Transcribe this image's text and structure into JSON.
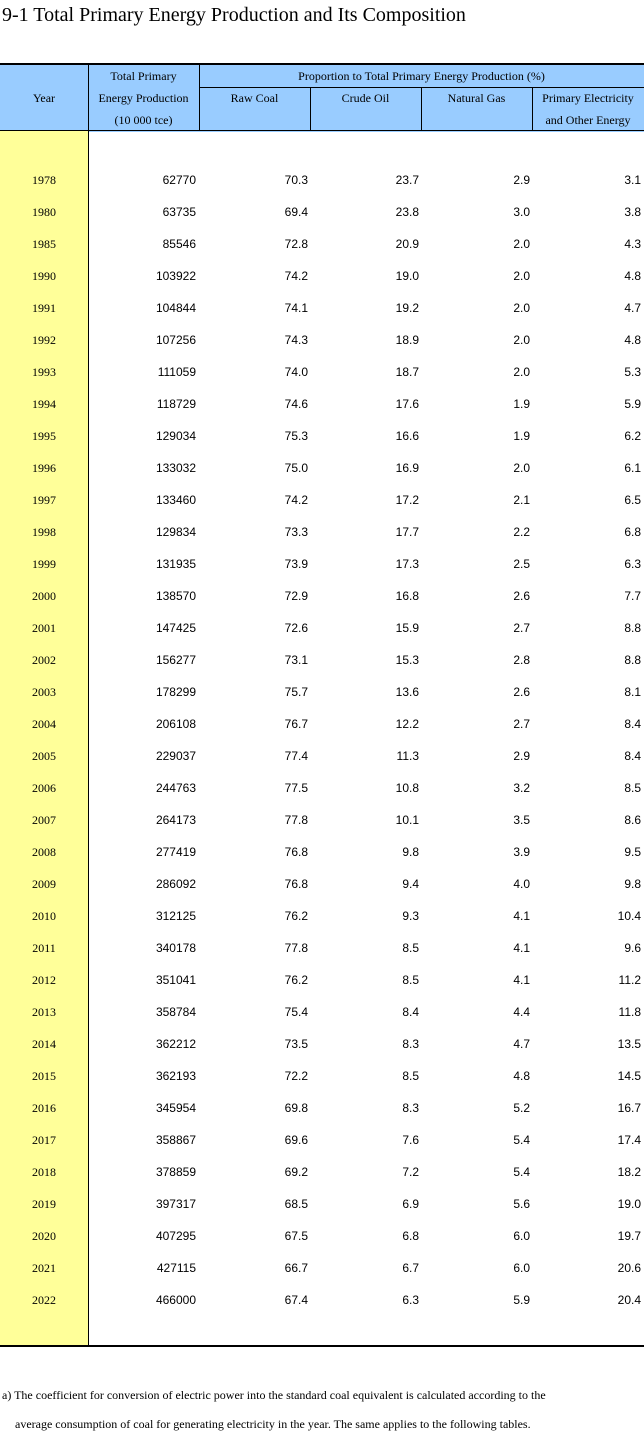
{
  "title": "9-1  Total Primary Energy Production and Its Composition",
  "headers": {
    "year": "Year",
    "total_l1": "Total Primary",
    "total_l2": "Energy Production",
    "total_l3": "(10 000 tce)",
    "proportion": "Proportion to Total Primary Energy Production (%)",
    "coal": "Raw Coal",
    "oil": "Crude Oil",
    "gas": "Natural Gas",
    "elec_l1": "Primary Electricity",
    "elec_l2": "and Other Energy"
  },
  "rows": [
    {
      "year": "1978",
      "total": "62770",
      "coal": "70.3",
      "oil": "23.7",
      "gas": "2.9",
      "elec": "3.1"
    },
    {
      "year": "1980",
      "total": "63735",
      "coal": "69.4",
      "oil": "23.8",
      "gas": "3.0",
      "elec": "3.8"
    },
    {
      "year": "1985",
      "total": "85546",
      "coal": "72.8",
      "oil": "20.9",
      "gas": "2.0",
      "elec": "4.3"
    },
    {
      "year": "1990",
      "total": "103922",
      "coal": "74.2",
      "oil": "19.0",
      "gas": "2.0",
      "elec": "4.8"
    },
    {
      "year": "1991",
      "total": "104844",
      "coal": "74.1",
      "oil": "19.2",
      "gas": "2.0",
      "elec": "4.7"
    },
    {
      "year": "1992",
      "total": "107256",
      "coal": "74.3",
      "oil": "18.9",
      "gas": "2.0",
      "elec": "4.8"
    },
    {
      "year": "1993",
      "total": "111059",
      "coal": "74.0",
      "oil": "18.7",
      "gas": "2.0",
      "elec": "5.3"
    },
    {
      "year": "1994",
      "total": "118729",
      "coal": "74.6",
      "oil": "17.6",
      "gas": "1.9",
      "elec": "5.9"
    },
    {
      "year": "1995",
      "total": "129034",
      "coal": "75.3",
      "oil": "16.6",
      "gas": "1.9",
      "elec": "6.2"
    },
    {
      "year": "1996",
      "total": "133032",
      "coal": "75.0",
      "oil": "16.9",
      "gas": "2.0",
      "elec": "6.1"
    },
    {
      "year": "1997",
      "total": "133460",
      "coal": "74.2",
      "oil": "17.2",
      "gas": "2.1",
      "elec": "6.5"
    },
    {
      "year": "1998",
      "total": "129834",
      "coal": "73.3",
      "oil": "17.7",
      "gas": "2.2",
      "elec": "6.8"
    },
    {
      "year": "1999",
      "total": "131935",
      "coal": "73.9",
      "oil": "17.3",
      "gas": "2.5",
      "elec": "6.3"
    },
    {
      "year": "2000",
      "total": "138570",
      "coal": "72.9",
      "oil": "16.8",
      "gas": "2.6",
      "elec": "7.7"
    },
    {
      "year": "2001",
      "total": "147425",
      "coal": "72.6",
      "oil": "15.9",
      "gas": "2.7",
      "elec": "8.8"
    },
    {
      "year": "2002",
      "total": "156277",
      "coal": "73.1",
      "oil": "15.3",
      "gas": "2.8",
      "elec": "8.8"
    },
    {
      "year": "2003",
      "total": "178299",
      "coal": "75.7",
      "oil": "13.6",
      "gas": "2.6",
      "elec": "8.1"
    },
    {
      "year": "2004",
      "total": "206108",
      "coal": "76.7",
      "oil": "12.2",
      "gas": "2.7",
      "elec": "8.4"
    },
    {
      "year": "2005",
      "total": "229037",
      "coal": "77.4",
      "oil": "11.3",
      "gas": "2.9",
      "elec": "8.4"
    },
    {
      "year": "2006",
      "total": "244763",
      "coal": "77.5",
      "oil": "10.8",
      "gas": "3.2",
      "elec": "8.5"
    },
    {
      "year": "2007",
      "total": "264173",
      "coal": "77.8",
      "oil": "10.1",
      "gas": "3.5",
      "elec": "8.6"
    },
    {
      "year": "2008",
      "total": "277419",
      "coal": "76.8",
      "oil": "9.8",
      "gas": "3.9",
      "elec": "9.5"
    },
    {
      "year": "2009",
      "total": "286092",
      "coal": "76.8",
      "oil": "9.4",
      "gas": "4.0",
      "elec": "9.8"
    },
    {
      "year": "2010",
      "total": "312125",
      "coal": "76.2",
      "oil": "9.3",
      "gas": "4.1",
      "elec": "10.4"
    },
    {
      "year": "2011",
      "total": "340178",
      "coal": "77.8",
      "oil": "8.5",
      "gas": "4.1",
      "elec": "9.6"
    },
    {
      "year": "2012",
      "total": "351041",
      "coal": "76.2",
      "oil": "8.5",
      "gas": "4.1",
      "elec": "11.2"
    },
    {
      "year": "2013",
      "total": "358784",
      "coal": "75.4",
      "oil": "8.4",
      "gas": "4.4",
      "elec": "11.8"
    },
    {
      "year": "2014",
      "total": "362212",
      "coal": "73.5",
      "oil": "8.3",
      "gas": "4.7",
      "elec": "13.5"
    },
    {
      "year": "2015",
      "total": "362193",
      "coal": "72.2",
      "oil": "8.5",
      "gas": "4.8",
      "elec": "14.5"
    },
    {
      "year": "2016",
      "total": "345954",
      "coal": "69.8",
      "oil": "8.3",
      "gas": "5.2",
      "elec": "16.7"
    },
    {
      "year": "2017",
      "total": "358867",
      "coal": "69.6",
      "oil": "7.6",
      "gas": "5.4",
      "elec": "17.4"
    },
    {
      "year": "2018",
      "total": "378859",
      "coal": "69.2",
      "oil": "7.2",
      "gas": "5.4",
      "elec": "18.2"
    },
    {
      "year": "2019",
      "total": "397317",
      "coal": "68.5",
      "oil": "6.9",
      "gas": "5.6",
      "elec": "19.0"
    },
    {
      "year": "2020",
      "total": "407295",
      "coal": "67.5",
      "oil": "6.8",
      "gas": "6.0",
      "elec": "19.7"
    },
    {
      "year": "2021",
      "total": "427115",
      "coal": "66.7",
      "oil": "6.7",
      "gas": "6.0",
      "elec": "20.6"
    },
    {
      "year": "2022",
      "total": "466000",
      "coal": "67.4",
      "oil": "6.3",
      "gas": "5.9",
      "elec": "20.4"
    }
  ],
  "note_line1": "a) The coefficient for conversion of electric power into the standard coal equivalent is calculated according to the",
  "note_line2": "average consumption of coal for generating electricity in the year. The same applies to the following tables."
}
